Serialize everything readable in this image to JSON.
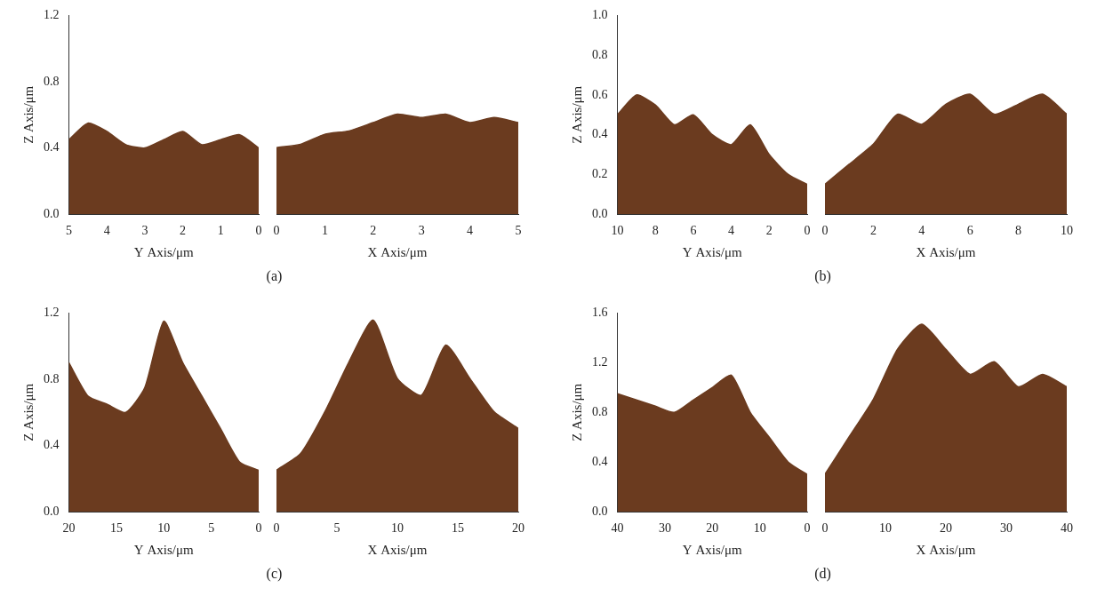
{
  "chart_data": [
    {
      "type": "area",
      "caption": "(a)",
      "color": "#6b3b1f",
      "grid": false,
      "x_label": "X Axis/μm",
      "y_label": "Y Axis/μm",
      "z_label": "Z Axis/μm",
      "xlim": [
        0,
        5
      ],
      "xticks": [
        0,
        1,
        2,
        3,
        4,
        5
      ],
      "ylim": [
        0,
        5
      ],
      "yticks": [
        0,
        1,
        2,
        3,
        4,
        5
      ],
      "zlim": [
        0,
        1.2
      ],
      "zticks": [
        {
          "value": 0,
          "label": "0.0"
        },
        0.4,
        0.8,
        1.2
      ],
      "y_edge": {
        "y": [
          5,
          4.5,
          4,
          3.5,
          3,
          2.5,
          2,
          1.5,
          1,
          0.5,
          0
        ],
        "values": [
          0.45,
          0.55,
          0.5,
          0.42,
          0.4,
          0.45,
          0.5,
          0.42,
          0.45,
          0.48,
          0.4
        ]
      },
      "x_edge": {
        "x": [
          0,
          0.5,
          1,
          1.5,
          2,
          2.5,
          3,
          3.5,
          4,
          4.5,
          5
        ],
        "values": [
          0.4,
          0.42,
          0.48,
          0.5,
          0.55,
          0.6,
          0.58,
          0.6,
          0.55,
          0.58,
          0.55
        ]
      }
    },
    {
      "type": "area",
      "caption": "(b)",
      "color": "#6b3b1f",
      "grid": false,
      "x_label": "X Axis/μm",
      "y_label": "Y Axis/μm",
      "z_label": "Z Axis/μm",
      "xlim": [
        0,
        10
      ],
      "xticks": [
        0,
        2,
        4,
        6,
        8,
        10
      ],
      "ylim": [
        0,
        10
      ],
      "yticks": [
        0,
        2,
        4,
        6,
        8,
        10
      ],
      "zlim": [
        0,
        1.0
      ],
      "zticks": [
        {
          "value": 0,
          "label": "0.0"
        },
        0.2,
        0.4,
        0.6,
        0.8,
        {
          "value": 1.0,
          "label": "1.0"
        }
      ],
      "y_edge": {
        "y": [
          10,
          9,
          8,
          7,
          6,
          5,
          4,
          3,
          2,
          1,
          0
        ],
        "values": [
          0.5,
          0.6,
          0.55,
          0.45,
          0.5,
          0.4,
          0.35,
          0.45,
          0.3,
          0.2,
          0.15
        ]
      },
      "x_edge": {
        "x": [
          0,
          1,
          2,
          3,
          4,
          5,
          6,
          7,
          8,
          9,
          10
        ],
        "values": [
          0.15,
          0.25,
          0.35,
          0.5,
          0.45,
          0.55,
          0.6,
          0.5,
          0.55,
          0.6,
          0.5
        ]
      }
    },
    {
      "type": "area",
      "caption": "(c)",
      "color": "#6b3b1f",
      "grid": false,
      "x_label": "X Axis/μm",
      "y_label": "Y Axis/μm",
      "z_label": "Z Axis/μm",
      "xlim": [
        0,
        20
      ],
      "xticks": [
        0,
        5,
        10,
        15,
        20
      ],
      "ylim": [
        0,
        20
      ],
      "yticks": [
        0,
        5,
        10,
        15,
        20
      ],
      "zlim": [
        0,
        1.2
      ],
      "zticks": [
        {
          "value": 0,
          "label": "0.0"
        },
        0.4,
        0.8,
        1.2
      ],
      "y_edge": {
        "y": [
          20,
          18,
          16,
          14,
          12,
          10,
          8,
          6,
          4,
          2,
          0
        ],
        "values": [
          0.9,
          0.7,
          0.65,
          0.6,
          0.75,
          1.15,
          0.9,
          0.7,
          0.5,
          0.3,
          0.25
        ]
      },
      "x_edge": {
        "x": [
          0,
          2,
          4,
          6,
          8,
          10,
          12,
          14,
          16,
          18,
          20
        ],
        "values": [
          0.25,
          0.35,
          0.6,
          0.9,
          1.15,
          0.8,
          0.7,
          1.0,
          0.8,
          0.6,
          0.5
        ]
      }
    },
    {
      "type": "area",
      "caption": "(d)",
      "color": "#6b3b1f",
      "grid": false,
      "x_label": "X Axis/μm",
      "y_label": "Y Axis/μm",
      "z_label": "Z Axis/μm",
      "xlim": [
        0,
        40
      ],
      "xticks": [
        0,
        10,
        20,
        30,
        40
      ],
      "ylim": [
        0,
        40
      ],
      "yticks": [
        0,
        10,
        20,
        30,
        40
      ],
      "zlim": [
        0,
        1.6
      ],
      "zticks": [
        {
          "value": 0,
          "label": "0.0"
        },
        0.4,
        0.8,
        1.2,
        1.6
      ],
      "y_edge": {
        "y": [
          40,
          36,
          32,
          28,
          24,
          20,
          16,
          12,
          8,
          4,
          0
        ],
        "values": [
          0.95,
          0.9,
          0.85,
          0.8,
          0.9,
          1.0,
          1.1,
          0.8,
          0.6,
          0.4,
          0.3
        ]
      },
      "x_edge": {
        "x": [
          0,
          4,
          8,
          12,
          16,
          20,
          24,
          28,
          32,
          36,
          40
        ],
        "values": [
          0.3,
          0.6,
          0.9,
          1.3,
          1.5,
          1.3,
          1.1,
          1.2,
          1.0,
          1.1,
          1.0
        ]
      }
    }
  ]
}
